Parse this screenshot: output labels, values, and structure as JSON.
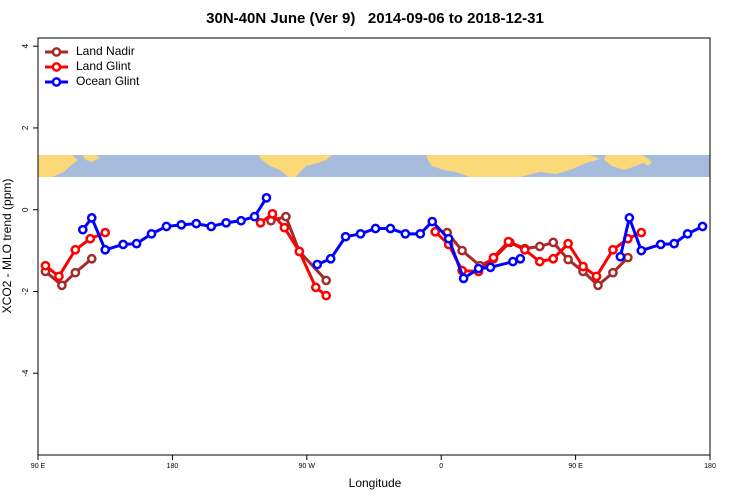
{
  "chart_data": {
    "type": "line",
    "title": "30N-40N June (Ver 9)   2014-09-06 to 2018-12-31",
    "x_label": "Longitude",
    "y_label": "XCO2 - MLO trend (ppm)",
    "xlim": [
      90,
      540
    ],
    "xticks": [
      {
        "value": 90,
        "label": "90 E"
      },
      {
        "value": 180,
        "label": "180"
      },
      {
        "value": 270,
        "label": "90 W"
      },
      {
        "value": 360,
        "label": "0"
      },
      {
        "value": 450,
        "label": "90 E"
      },
      {
        "value": 540,
        "label": "180"
      }
    ],
    "ylim": [
      -6,
      4.2
    ],
    "yticks": [
      -4,
      -2,
      0,
      2,
      4
    ],
    "legend": "topleft",
    "series": [
      {
        "name": "Land Nadir",
        "color": "#a52a2a",
        "x": [
          95,
          106,
          115,
          126,
          200,
          246,
          256,
          265,
          283,
          320,
          364,
          374,
          386,
          395,
          406,
          416,
          426,
          435,
          445,
          455,
          465,
          475,
          485
        ],
        "values": [
          -1.51,
          -1.85,
          -1.54,
          -1.2,
          null,
          -0.27,
          -0.17,
          -1.02,
          -1.73,
          null,
          -0.56,
          -1.0,
          -1.37,
          -1.2,
          -0.8,
          -0.95,
          -0.9,
          -0.8,
          -1.22,
          -1.51,
          -1.85,
          -1.54,
          -1.17
        ]
      },
      {
        "name": "Land Glint",
        "color": "#ff0000",
        "x": [
          95,
          104,
          115,
          125,
          135,
          200,
          239,
          247,
          255,
          265,
          276,
          283,
          320,
          356,
          365,
          374,
          385,
          395,
          405,
          416,
          426,
          435,
          445,
          455,
          464,
          475,
          485,
          494
        ],
        "values": [
          -1.37,
          -1.63,
          -0.98,
          -0.71,
          -0.56,
          null,
          -0.32,
          -0.1,
          -0.44,
          -1.02,
          -1.9,
          -2.1,
          null,
          -0.54,
          -0.85,
          -1.49,
          -1.51,
          -1.17,
          -0.78,
          -0.98,
          -1.27,
          -1.2,
          -0.83,
          -1.39,
          -1.63,
          -0.98,
          -0.71,
          -0.56
        ]
      },
      {
        "name": "Ocean Glint",
        "color": "#0000ff",
        "x": [
          120,
          126,
          135,
          147,
          156,
          166,
          176,
          186,
          196,
          206,
          216,
          226,
          235,
          243,
          260,
          277,
          286,
          296,
          306,
          316,
          326,
          336,
          346,
          354,
          365,
          375,
          385,
          393,
          408,
          413,
          450,
          480,
          486,
          494,
          507,
          516,
          525,
          535
        ],
        "values": [
          -0.49,
          -0.2,
          -0.98,
          -0.85,
          -0.83,
          -0.59,
          -0.41,
          -0.37,
          -0.34,
          -0.41,
          -0.32,
          -0.27,
          -0.17,
          0.29,
          null,
          -1.34,
          -1.2,
          -0.66,
          -0.59,
          -0.46,
          -0.46,
          -0.59,
          -0.59,
          -0.29,
          -0.71,
          -1.68,
          -1.44,
          -1.41,
          -1.27,
          -1.2,
          null,
          -1.15,
          -0.2,
          -1.0,
          -0.85,
          -0.83,
          -0.59,
          -0.41
        ]
      }
    ]
  }
}
